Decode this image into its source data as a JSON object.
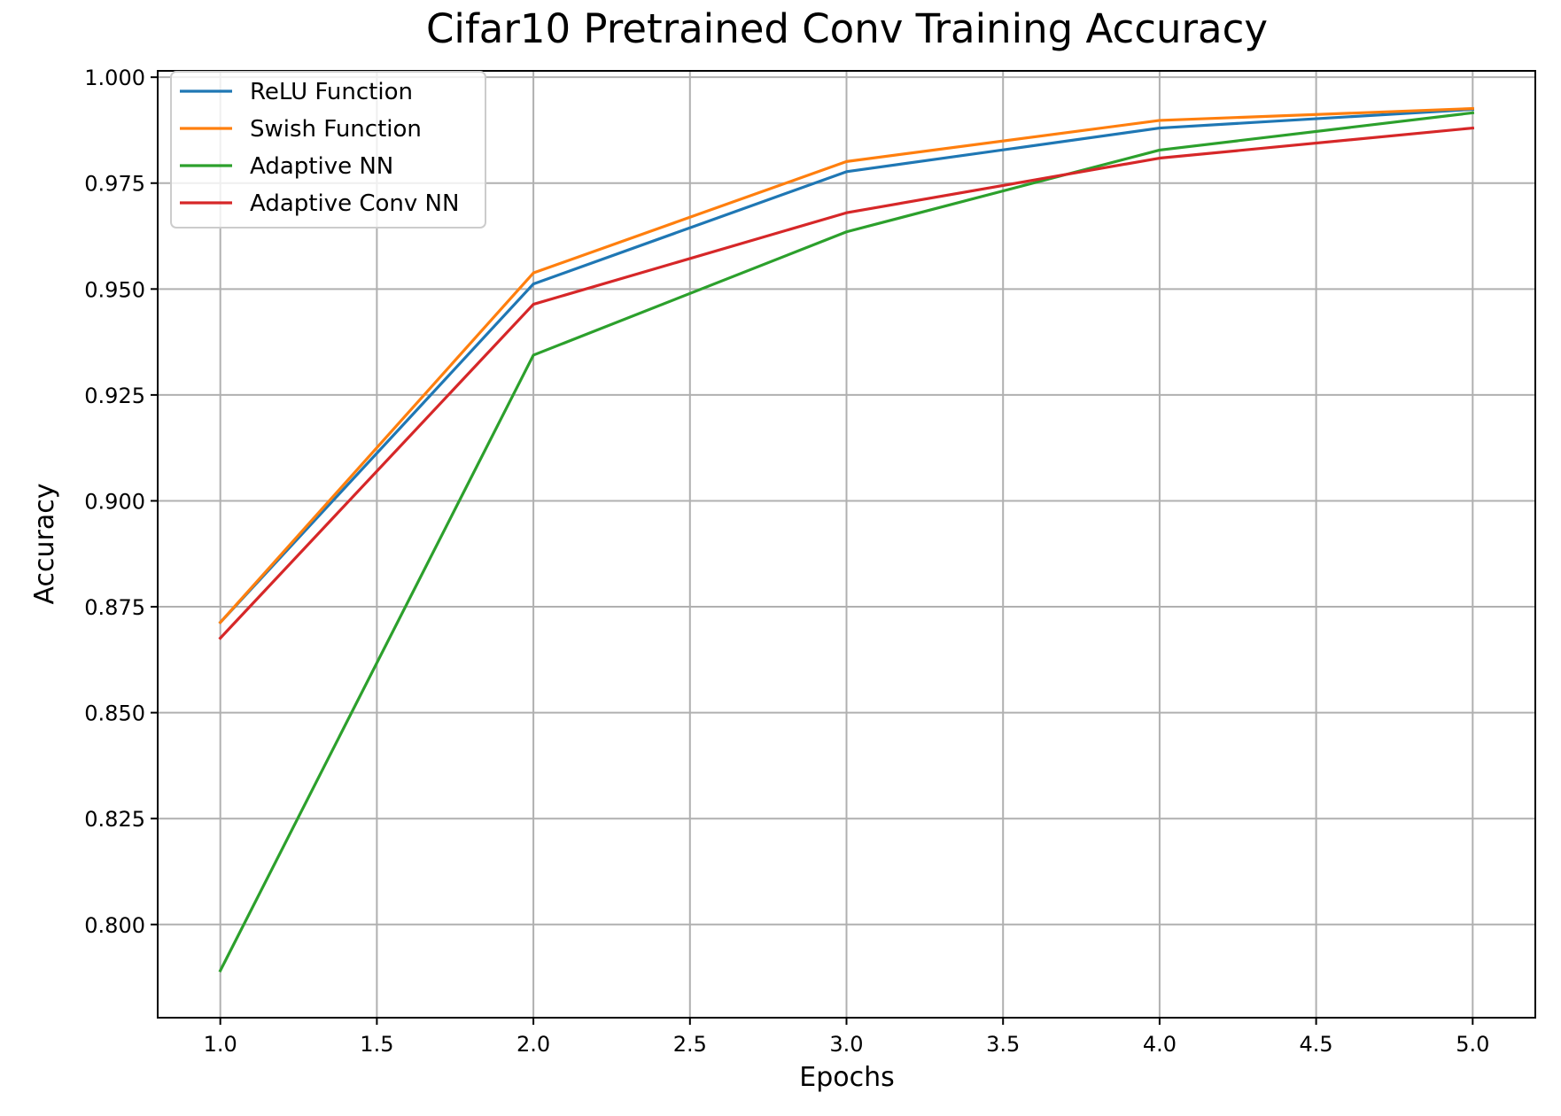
{
  "chart_data": {
    "type": "line",
    "title": "Cifar10 Pretrained Conv Training Accuracy",
    "xlabel": "Epochs",
    "ylabel": "Accuracy",
    "x": [
      1,
      2,
      3,
      4,
      5
    ],
    "xlim": [
      0.8,
      5.2
    ],
    "ylim": [
      0.778,
      1.0015
    ],
    "xticks": [
      1.0,
      1.5,
      2.0,
      2.5,
      3.0,
      3.5,
      4.0,
      4.5,
      5.0
    ],
    "xtick_labels": [
      "1.0",
      "1.5",
      "2.0",
      "2.5",
      "3.0",
      "3.5",
      "4.0",
      "4.5",
      "5.0"
    ],
    "yticks": [
      0.8,
      0.825,
      0.85,
      0.875,
      0.9,
      0.925,
      0.95,
      0.975,
      1.0
    ],
    "ytick_labels": [
      "0.800",
      "0.825",
      "0.850",
      "0.875",
      "0.900",
      "0.925",
      "0.950",
      "0.975",
      "1.000"
    ],
    "grid": true,
    "legend_position": "upper-left",
    "series": [
      {
        "name": "ReLU Function",
        "color": "#1f77b4",
        "values": [
          0.8713,
          0.9512,
          0.9777,
          0.988,
          0.9924
        ]
      },
      {
        "name": "Swish Function",
        "color": "#ff7f0e",
        "values": [
          0.8713,
          0.9538,
          0.9801,
          0.9898,
          0.9926
        ]
      },
      {
        "name": "Adaptive NN",
        "color": "#2ca02c",
        "values": [
          0.7891,
          0.9344,
          0.9635,
          0.9828,
          0.9916
        ]
      },
      {
        "name": "Adaptive Conv NN",
        "color": "#d62728",
        "values": [
          0.8676,
          0.9464,
          0.968,
          0.9809,
          0.988
        ]
      }
    ]
  }
}
